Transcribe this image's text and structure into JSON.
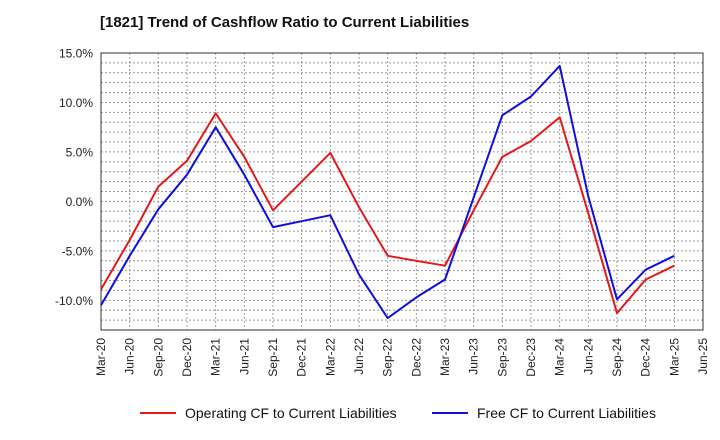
{
  "chart_data": {
    "type": "line",
    "title": "[1821]  Trend of Cashflow Ratio to Current Liabilities",
    "xlabel": "",
    "ylabel": "",
    "ylim": [
      -13,
      15
    ],
    "y_ticks": [
      "15.0%",
      "10.0%",
      "5.0%",
      "0.0%",
      "-5.0%",
      "-10.0%"
    ],
    "y_tick_values": [
      15,
      10,
      5,
      0,
      -5,
      -10
    ],
    "categories": [
      "Mar-20",
      "Jun-20",
      "Sep-20",
      "Dec-20",
      "Mar-21",
      "Jun-21",
      "Sep-21",
      "Dec-21",
      "Mar-22",
      "Jun-22",
      "Sep-22",
      "Dec-22",
      "Mar-23",
      "Jun-23",
      "Sep-23",
      "Dec-23",
      "Mar-24",
      "Jun-24",
      "Sep-24",
      "Dec-24",
      "Mar-25",
      "Jun-25"
    ],
    "grid": true,
    "legend_position": "bottom",
    "series": [
      {
        "name": "Operating CF to Current Liabilities",
        "color": "#e31a1c",
        "values": [
          -8.9,
          -3.9,
          1.5,
          4.1,
          8.9,
          4.5,
          -0.9,
          2.0,
          4.9,
          -0.6,
          -5.5,
          -6.0,
          -6.5,
          -0.9,
          4.5,
          6.1,
          8.5,
          -1.2,
          -11.3,
          -7.9,
          -6.5,
          null
        ]
      },
      {
        "name": "Free CF to Current Liabilities",
        "color": "#1010dd",
        "values": [
          -10.5,
          -5.5,
          -0.8,
          2.7,
          7.5,
          2.7,
          -2.6,
          -2.0,
          -1.4,
          -7.4,
          -11.8,
          -9.7,
          -7.9,
          0.4,
          8.7,
          10.6,
          13.7,
          0.5,
          -9.9,
          -6.9,
          -5.5,
          null
        ]
      }
    ]
  }
}
